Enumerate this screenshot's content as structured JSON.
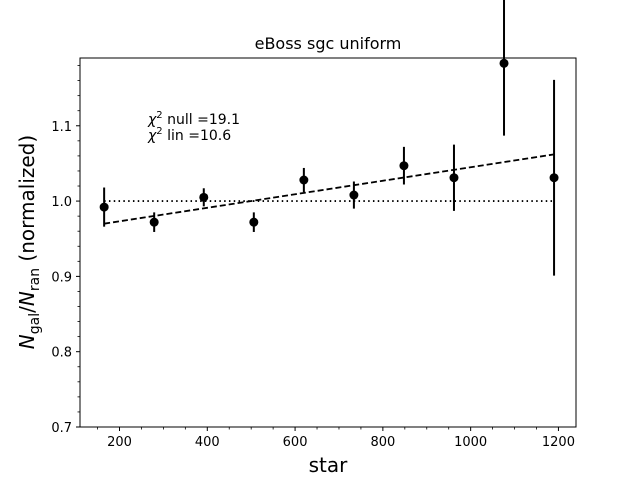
{
  "chart_data": {
    "type": "scatter",
    "title": "eBoss sgc uniform",
    "xlabel": "star",
    "ylabel": {
      "prefix_main": "N",
      "prefix_sub": "gal",
      "slash": "/",
      "mid_main": "N",
      "mid_sub": "ran",
      "suffix": " (normalized)"
    },
    "xlim": [
      110,
      1240
    ],
    "ylim": [
      0.7,
      1.19
    ],
    "xticks": [
      200,
      400,
      600,
      800,
      1000,
      1200
    ],
    "yticks": [
      0.7,
      0.8,
      0.9,
      1.0,
      1.1
    ],
    "xtick_labels": [
      "200",
      "400",
      "600",
      "800",
      "1000",
      "1200"
    ],
    "ytick_labels": [
      "0.7",
      "0.8",
      "0.9",
      "1.0",
      "1.1"
    ],
    "grid": false,
    "series": [
      {
        "style": "errorbar",
        "color": "#000000",
        "x": [
          165,
          279,
          392,
          506,
          620,
          734,
          848,
          962,
          1076,
          1190
        ],
        "y": [
          0.992,
          0.972,
          1.005,
          0.972,
          1.028,
          1.008,
          1.047,
          1.031,
          1.183,
          1.031
        ],
        "yerr": [
          0.026,
          0.013,
          0.012,
          0.013,
          0.016,
          0.018,
          0.025,
          0.044,
          0.096,
          0.13
        ]
      }
    ],
    "reference_lines": [
      {
        "style": "dotted",
        "color": "#000000",
        "x": [
          165,
          1190
        ],
        "y": [
          1.0,
          1.0
        ]
      },
      {
        "style": "dashed",
        "color": "#000000",
        "x": [
          165,
          1190
        ],
        "y": [
          0.97,
          1.062
        ]
      }
    ],
    "annotations": [
      {
        "main": "χ",
        "sup": "2",
        "rest": " null =19.1"
      },
      {
        "main": "χ",
        "sup": "2",
        "rest": " lin =10.6"
      }
    ]
  }
}
